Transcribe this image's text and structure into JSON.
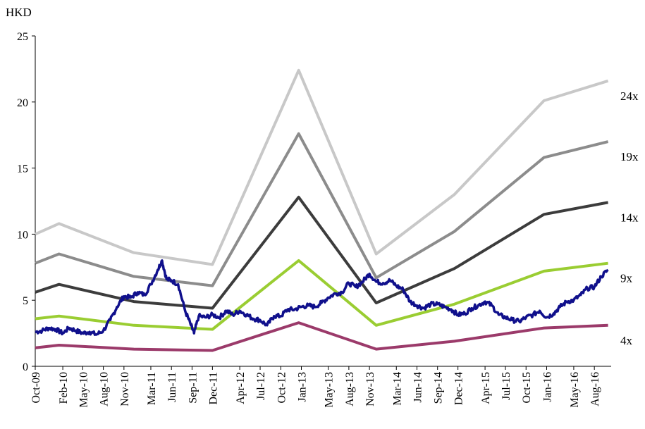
{
  "chart_data": {
    "type": "line",
    "unit_label": "HKD",
    "ylim": [
      0,
      25
    ],
    "yticks": [
      "0",
      "5",
      "10",
      "15",
      "20",
      "25"
    ],
    "x_range": [
      "2009-10-01",
      "2016-10-15"
    ],
    "x_tick_labels": [
      {
        "label": "Oct-09",
        "date": "2009-10-01"
      },
      {
        "label": "Feb-10",
        "date": "2010-02-01"
      },
      {
        "label": "May-10",
        "date": "2010-05-01"
      },
      {
        "label": "Aug-10",
        "date": "2010-08-01"
      },
      {
        "label": "Nov-10",
        "date": "2010-11-01"
      },
      {
        "label": "Mar-11",
        "date": "2011-03-01"
      },
      {
        "label": "Jun-11",
        "date": "2011-06-01"
      },
      {
        "label": "Sep-11",
        "date": "2011-09-01"
      },
      {
        "label": "Dec-11",
        "date": "2011-12-01"
      },
      {
        "label": "Apr-12",
        "date": "2012-04-01"
      },
      {
        "label": "Jul-12",
        "date": "2012-07-01"
      },
      {
        "label": "Oct-12",
        "date": "2012-10-01"
      },
      {
        "label": "Jan-13",
        "date": "2013-01-01"
      },
      {
        "label": "May-13",
        "date": "2013-05-01"
      },
      {
        "label": "Aug-13",
        "date": "2013-08-01"
      },
      {
        "label": "Nov-13",
        "date": "2013-11-01"
      },
      {
        "label": "Mar-14",
        "date": "2014-03-01"
      },
      {
        "label": "Jun-14",
        "date": "2014-06-01"
      },
      {
        "label": "Sep-14",
        "date": "2014-09-01"
      },
      {
        "label": "Dec-14",
        "date": "2014-12-01"
      },
      {
        "label": "Apr-15",
        "date": "2015-04-01"
      },
      {
        "label": "Jul-15",
        "date": "2015-07-01"
      },
      {
        "label": "Oct-15",
        "date": "2015-10-01"
      },
      {
        "label": "Jan-16",
        "date": "2016-01-01"
      },
      {
        "label": "May-16",
        "date": "2016-05-01"
      },
      {
        "label": "Aug-16",
        "date": "2016-08-01"
      }
    ],
    "bands": [
      {
        "name": "24x",
        "color": "#c8c8c8",
        "points": [
          [
            "2009-10-01",
            10.0
          ],
          [
            "2010-01-15",
            10.8
          ],
          [
            "2010-12-15",
            8.6
          ],
          [
            "2011-12-01",
            7.7
          ],
          [
            "2012-12-20",
            22.4
          ],
          [
            "2013-12-01",
            8.5
          ],
          [
            "2014-11-15",
            13.0
          ],
          [
            "2015-12-20",
            20.1
          ],
          [
            "2016-10-01",
            21.6
          ]
        ]
      },
      {
        "name": "19x",
        "color": "#8c8c8c",
        "points": [
          [
            "2009-10-01",
            7.8
          ],
          [
            "2010-01-15",
            8.5
          ],
          [
            "2010-12-15",
            6.8
          ],
          [
            "2011-12-01",
            6.1
          ],
          [
            "2012-12-20",
            17.6
          ],
          [
            "2013-12-01",
            6.7
          ],
          [
            "2014-11-15",
            10.2
          ],
          [
            "2015-12-20",
            15.8
          ],
          [
            "2016-10-01",
            17.0
          ]
        ]
      },
      {
        "name": "14x",
        "color": "#3c3c3c",
        "points": [
          [
            "2009-10-01",
            5.6
          ],
          [
            "2010-01-15",
            6.2
          ],
          [
            "2010-12-15",
            4.9
          ],
          [
            "2011-12-01",
            4.4
          ],
          [
            "2012-12-20",
            12.8
          ],
          [
            "2013-12-01",
            4.8
          ],
          [
            "2014-11-15",
            7.4
          ],
          [
            "2015-12-20",
            11.5
          ],
          [
            "2016-10-01",
            12.4
          ]
        ]
      },
      {
        "name": "9x",
        "color": "#9acd32",
        "points": [
          [
            "2009-10-01",
            3.6
          ],
          [
            "2010-01-15",
            3.8
          ],
          [
            "2010-12-15",
            3.1
          ],
          [
            "2011-12-01",
            2.8
          ],
          [
            "2012-12-20",
            8.0
          ],
          [
            "2013-12-01",
            3.1
          ],
          [
            "2014-11-15",
            4.7
          ],
          [
            "2015-12-20",
            7.2
          ],
          [
            "2016-10-01",
            7.8
          ]
        ]
      },
      {
        "name": "4x",
        "color": "#9b3a6a",
        "points": [
          [
            "2009-10-01",
            1.4
          ],
          [
            "2010-01-15",
            1.6
          ],
          [
            "2010-12-15",
            1.3
          ],
          [
            "2011-12-01",
            1.2
          ],
          [
            "2012-12-20",
            3.3
          ],
          [
            "2013-12-01",
            1.3
          ],
          [
            "2014-11-15",
            1.9
          ],
          [
            "2015-12-20",
            2.9
          ],
          [
            "2016-10-01",
            3.1
          ]
        ]
      }
    ],
    "price": {
      "color": "#10108c",
      "points": [
        [
          "2009-10-01",
          2.6
        ],
        [
          "2009-11-01",
          2.7
        ],
        [
          "2009-12-01",
          2.9
        ],
        [
          "2010-01-01",
          2.8
        ],
        [
          "2010-02-01",
          2.5
        ],
        [
          "2010-03-01",
          2.9
        ],
        [
          "2010-04-01",
          2.7
        ],
        [
          "2010-05-01",
          2.5
        ],
        [
          "2010-06-01",
          2.6
        ],
        [
          "2010-07-01",
          2.4
        ],
        [
          "2010-08-01",
          2.7
        ],
        [
          "2010-09-01",
          3.5
        ],
        [
          "2010-10-01",
          4.5
        ],
        [
          "2010-11-01",
          5.3
        ],
        [
          "2010-12-01",
          5.2
        ],
        [
          "2011-01-01",
          5.6
        ],
        [
          "2011-02-01",
          5.4
        ],
        [
          "2011-03-01",
          6.2
        ],
        [
          "2011-04-01",
          7.3
        ],
        [
          "2011-04-20",
          8.0
        ],
        [
          "2011-05-10",
          6.6
        ],
        [
          "2011-06-01",
          6.5
        ],
        [
          "2011-07-01",
          6.2
        ],
        [
          "2011-08-01",
          4.2
        ],
        [
          "2011-08-25",
          3.2
        ],
        [
          "2011-09-10",
          2.5
        ],
        [
          "2011-10-01",
          3.8
        ],
        [
          "2011-11-01",
          3.7
        ],
        [
          "2011-12-01",
          3.9
        ],
        [
          "2012-01-01",
          3.7
        ],
        [
          "2012-02-01",
          4.2
        ],
        [
          "2012-03-01",
          3.9
        ],
        [
          "2012-04-01",
          4.2
        ],
        [
          "2012-05-01",
          3.9
        ],
        [
          "2012-06-01",
          3.6
        ],
        [
          "2012-07-01",
          3.5
        ],
        [
          "2012-08-01",
          3.1
        ],
        [
          "2012-09-01",
          3.8
        ],
        [
          "2012-10-01",
          3.8
        ],
        [
          "2012-11-01",
          4.3
        ],
        [
          "2012-12-01",
          4.3
        ],
        [
          "2013-01-01",
          4.5
        ],
        [
          "2013-02-01",
          4.6
        ],
        [
          "2013-03-01",
          4.5
        ],
        [
          "2013-04-01",
          4.8
        ],
        [
          "2013-05-01",
          5.2
        ],
        [
          "2013-06-01",
          5.5
        ],
        [
          "2013-07-01",
          5.6
        ],
        [
          "2013-08-01",
          6.3
        ],
        [
          "2013-09-01",
          6.0
        ],
        [
          "2013-10-01",
          6.4
        ],
        [
          "2013-11-01",
          7.0
        ],
        [
          "2013-12-01",
          6.4
        ],
        [
          "2014-01-01",
          6.3
        ],
        [
          "2014-02-01",
          6.5
        ],
        [
          "2014-03-01",
          6.1
        ],
        [
          "2014-04-01",
          5.8
        ],
        [
          "2014-05-01",
          4.9
        ],
        [
          "2014-06-01",
          4.6
        ],
        [
          "2014-07-01",
          4.4
        ],
        [
          "2014-08-01",
          4.7
        ],
        [
          "2014-09-01",
          4.7
        ],
        [
          "2014-10-01",
          4.5
        ],
        [
          "2014-11-01",
          4.3
        ],
        [
          "2014-12-01",
          3.9
        ],
        [
          "2015-01-01",
          4.0
        ],
        [
          "2015-02-01",
          4.4
        ],
        [
          "2015-03-01",
          4.6
        ],
        [
          "2015-04-01",
          4.9
        ],
        [
          "2015-05-01",
          4.6
        ],
        [
          "2015-06-01",
          3.9
        ],
        [
          "2015-07-01",
          3.7
        ],
        [
          "2015-08-01",
          3.5
        ],
        [
          "2015-09-01",
          3.4
        ],
        [
          "2015-10-01",
          3.7
        ],
        [
          "2015-11-01",
          3.9
        ],
        [
          "2015-12-01",
          4.2
        ],
        [
          "2016-01-01",
          3.7
        ],
        [
          "2016-02-01",
          4.0
        ],
        [
          "2016-03-01",
          4.5
        ],
        [
          "2016-04-01",
          4.9
        ],
        [
          "2016-05-01",
          5.0
        ],
        [
          "2016-06-01",
          5.4
        ],
        [
          "2016-07-01",
          5.9
        ],
        [
          "2016-08-01",
          6.0
        ],
        [
          "2016-09-01",
          6.8
        ],
        [
          "2016-10-01",
          7.3
        ]
      ]
    }
  }
}
